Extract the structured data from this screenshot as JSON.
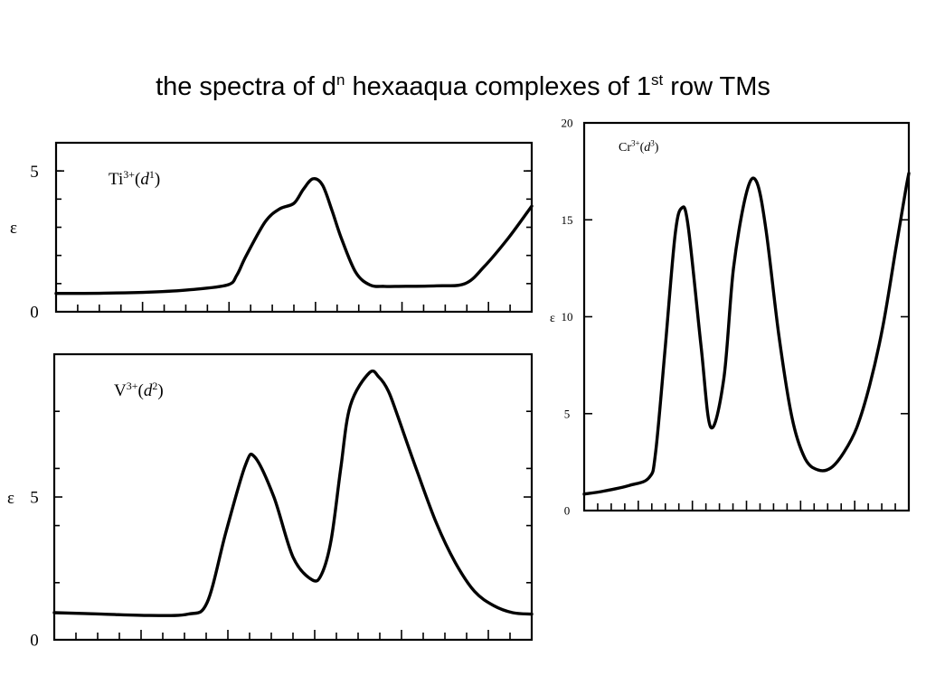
{
  "title": {
    "t1": "the spectra of d",
    "s1": "n",
    "t2": " hexaaqua complexes of 1",
    "s2": "st",
    "t3": " row TMs"
  },
  "chart_data": [
    {
      "type": "line",
      "label": {
        "ion": "Ti",
        "charge": "3+",
        "config_base": "d",
        "config_exp": "1"
      },
      "ylabel": "ε",
      "yticks": [
        "0",
        "5"
      ],
      "ylim": [
        0,
        6
      ],
      "xlim": [
        0,
        1
      ],
      "minor_y": [
        1,
        2,
        3,
        4,
        5
      ],
      "x_ticks": 22,
      "series": [
        {
          "x": [
            0,
            0.1,
            0.2,
            0.28,
            0.36,
            0.38,
            0.4,
            0.44,
            0.47,
            0.5,
            0.52,
            0.54,
            0.56,
            0.58,
            0.6,
            0.63,
            0.66,
            0.69,
            0.72,
            0.8,
            0.86,
            0.9,
            0.95,
            1.0
          ],
          "y": [
            0.65,
            0.66,
            0.7,
            0.78,
            0.95,
            1.3,
            2.0,
            3.2,
            3.65,
            3.85,
            4.35,
            4.72,
            4.5,
            3.6,
            2.6,
            1.4,
            0.95,
            0.9,
            0.9,
            0.92,
            1.0,
            1.6,
            2.6,
            3.75
          ]
        }
      ]
    },
    {
      "type": "line",
      "label": {
        "ion": "V",
        "charge": "3+",
        "config_base": "d",
        "config_exp": "2"
      },
      "ylabel": "ε",
      "yticks": [
        "0",
        "5"
      ],
      "ylim": [
        0,
        10
      ],
      "xlim": [
        0,
        1
      ],
      "minor_y": [
        2,
        4,
        6,
        8
      ],
      "x_ticks": 22,
      "series": [
        {
          "x": [
            0,
            0.1,
            0.2,
            0.28,
            0.32,
            0.36,
            0.4,
            0.42,
            0.46,
            0.5,
            0.54,
            0.56,
            0.58,
            0.6,
            0.62,
            0.66,
            0.68,
            0.7,
            0.72,
            0.76,
            0.8,
            0.84,
            0.88,
            0.92,
            0.96,
            1.0
          ],
          "y": [
            0.95,
            0.9,
            0.85,
            0.9,
            1.3,
            3.8,
            6.1,
            6.4,
            5.0,
            2.9,
            2.1,
            2.3,
            3.5,
            6.0,
            8.2,
            9.35,
            9.2,
            8.7,
            7.8,
            5.9,
            4.1,
            2.7,
            1.7,
            1.2,
            0.95,
            0.9
          ]
        }
      ]
    },
    {
      "type": "line",
      "label": {
        "ion": "Cr",
        "charge": "3+",
        "config_base": "d",
        "config_exp": "3"
      },
      "ylabel": "ε",
      "yticks": [
        "0",
        "5",
        "10",
        "15",
        "20"
      ],
      "ylim": [
        0,
        20
      ],
      "xlim": [
        0,
        1
      ],
      "minor_y": [],
      "x_ticks": 24,
      "series": [
        {
          "x": [
            0,
            0.06,
            0.14,
            0.2,
            0.22,
            0.25,
            0.28,
            0.3,
            0.32,
            0.36,
            0.39,
            0.43,
            0.46,
            0.5,
            0.53,
            0.56,
            0.6,
            0.64,
            0.68,
            0.72,
            0.76,
            0.8,
            0.84,
            0.88,
            0.92,
            0.96,
            0.99,
            1.0
          ],
          "y": [
            0.85,
            1.0,
            1.3,
            1.7,
            3.0,
            8.5,
            14.2,
            15.6,
            14.7,
            8.5,
            4.3,
            6.8,
            12.5,
            16.4,
            17.0,
            14.5,
            9.0,
            4.8,
            2.7,
            2.1,
            2.2,
            3.0,
            4.3,
            6.5,
            9.5,
            13.5,
            16.5,
            17.4
          ]
        }
      ]
    }
  ]
}
